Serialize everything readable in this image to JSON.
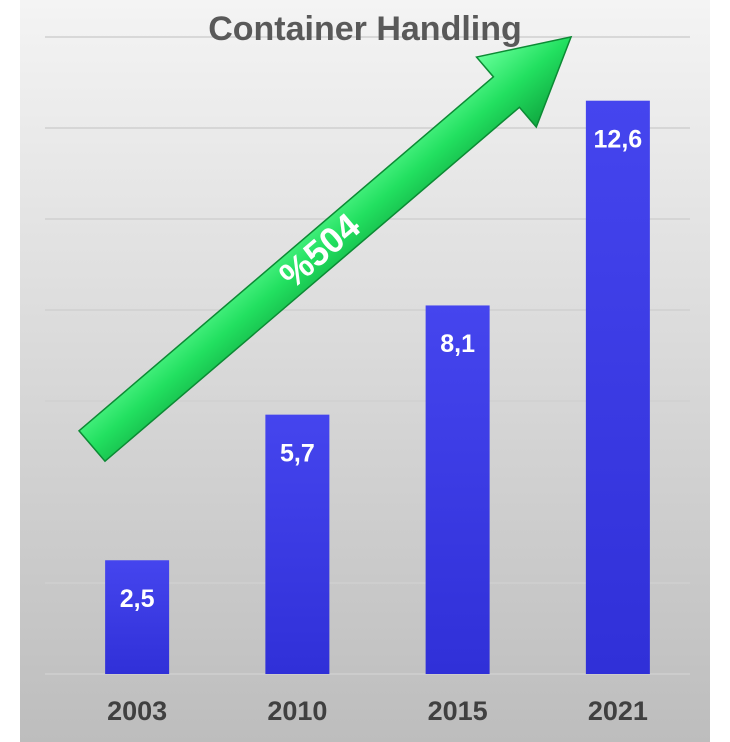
{
  "chart_data": {
    "type": "bar",
    "title": "Container Handling",
    "categories": [
      "2003",
      "2010",
      "2015",
      "2021"
    ],
    "values": [
      2.5,
      5.7,
      8.1,
      12.6
    ],
    "value_labels": [
      "2,5",
      "5,7",
      "8,1",
      "12,6"
    ],
    "color": "#3a3ae0",
    "ylim": [
      0,
      14
    ],
    "yticks": [
      0,
      2,
      4,
      6,
      8,
      10,
      12,
      14
    ],
    "grid": true,
    "annotation": "%504"
  }
}
